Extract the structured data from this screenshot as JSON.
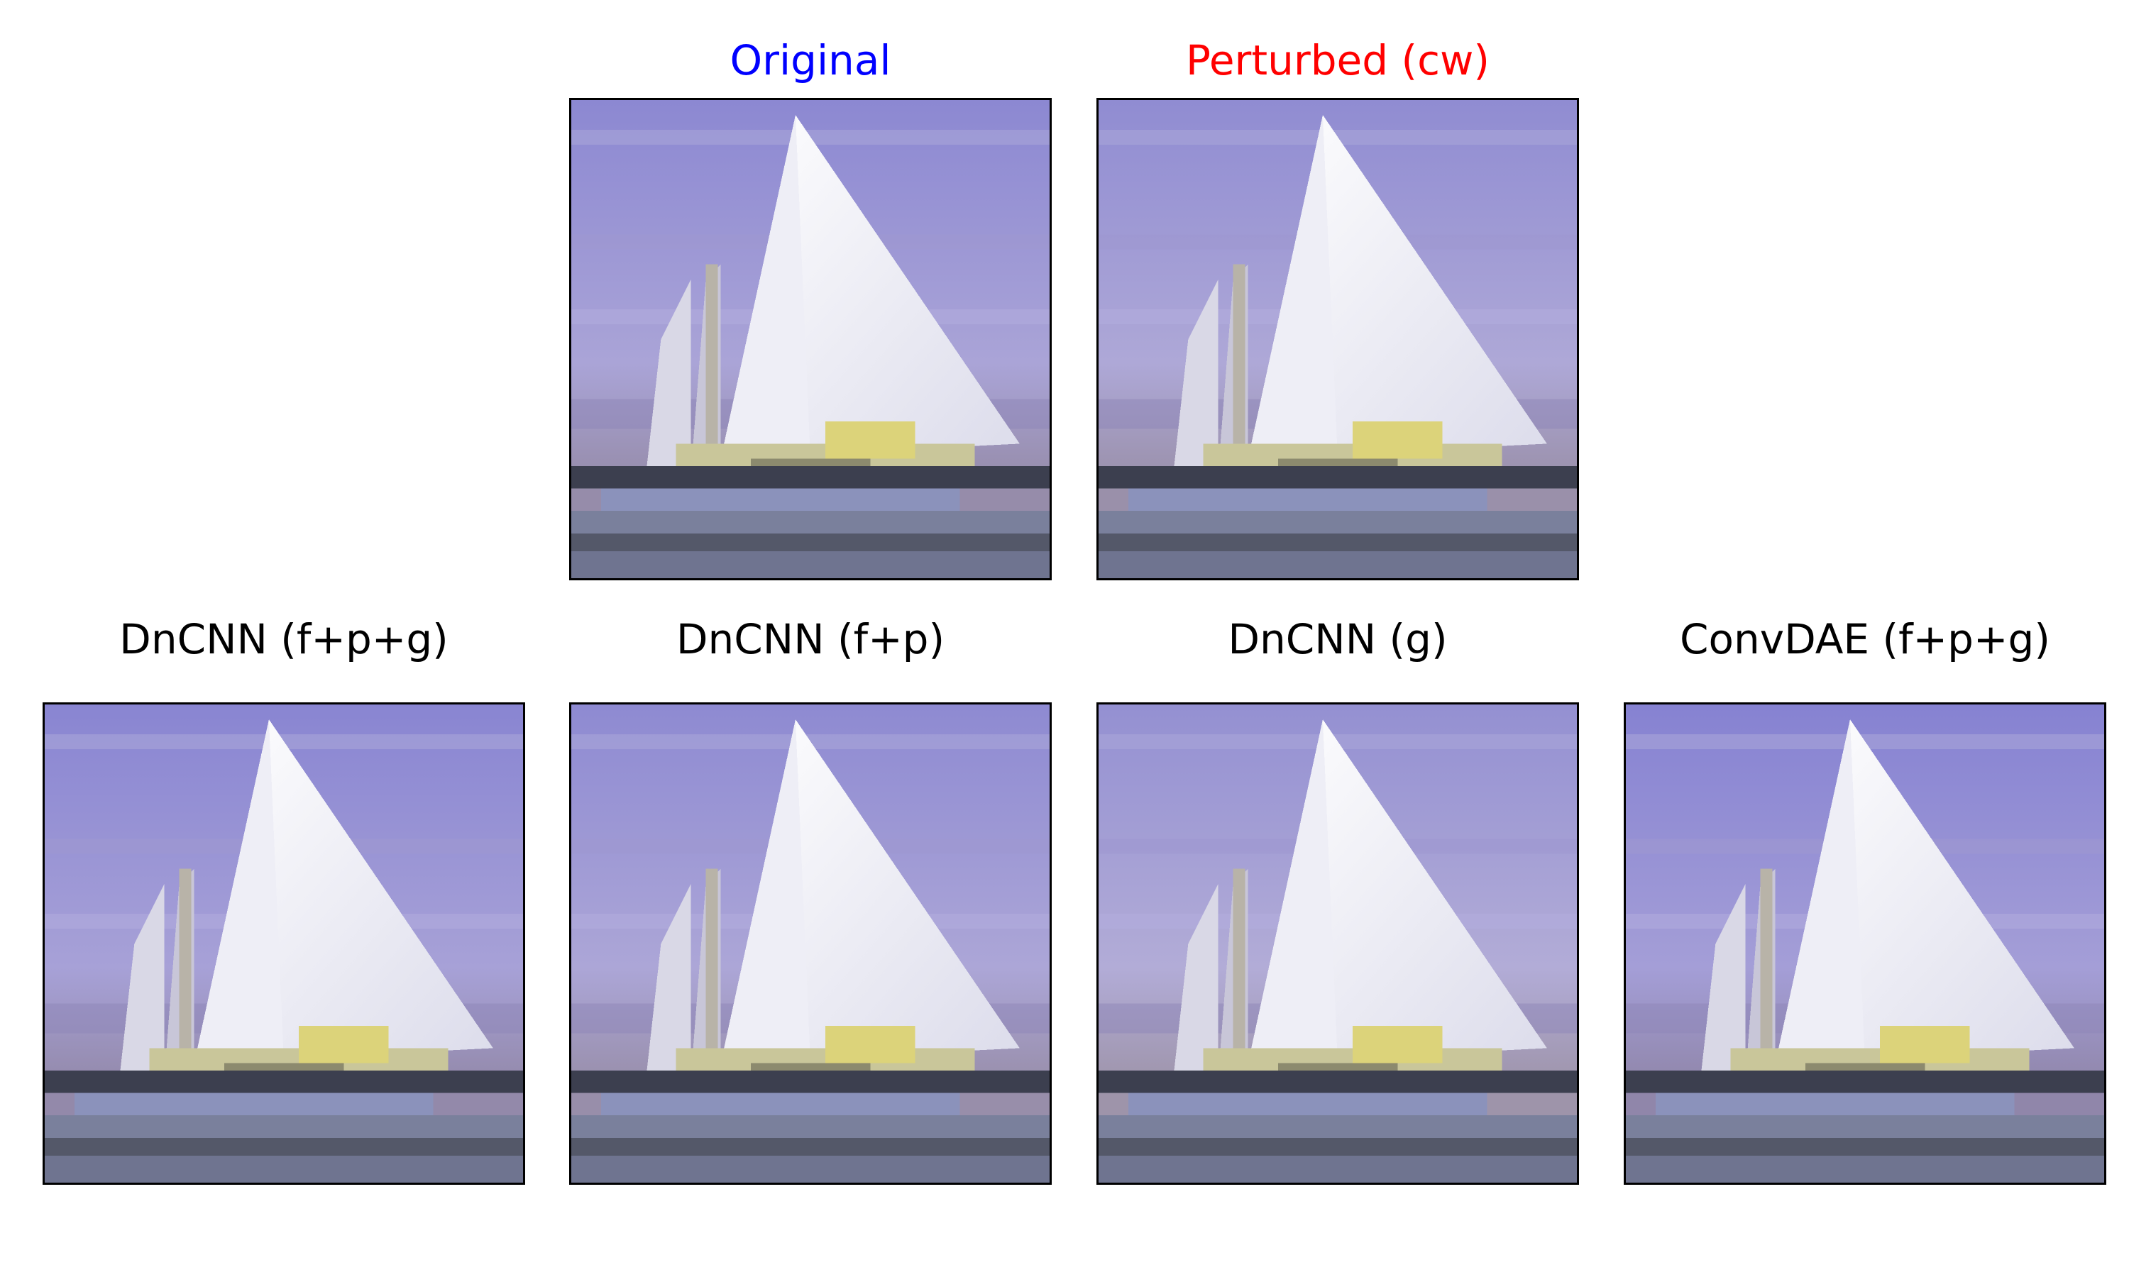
{
  "figure": {
    "top_row": [
      {
        "title": "Original",
        "title_color": "#0000ff"
      },
      {
        "title": "Perturbed (cw)",
        "title_color": "#ff0000"
      }
    ],
    "bottom_row": [
      {
        "title": "DnCNN (f+p+g)",
        "title_color": "#000000"
      },
      {
        "title": "DnCNN (f+p)",
        "title_color": "#000000"
      },
      {
        "title": "DnCNN (g)",
        "title_color": "#000000"
      },
      {
        "title": "ConvDAE (f+p+g)",
        "title_color": "#000000"
      }
    ]
  },
  "image_subject": "sailboat",
  "colors": {
    "sky": "#8f8cd3",
    "sail": "#f2f2f8",
    "deck": "#d8cf78",
    "hull": "#7e85a8",
    "water": "#55596e"
  }
}
